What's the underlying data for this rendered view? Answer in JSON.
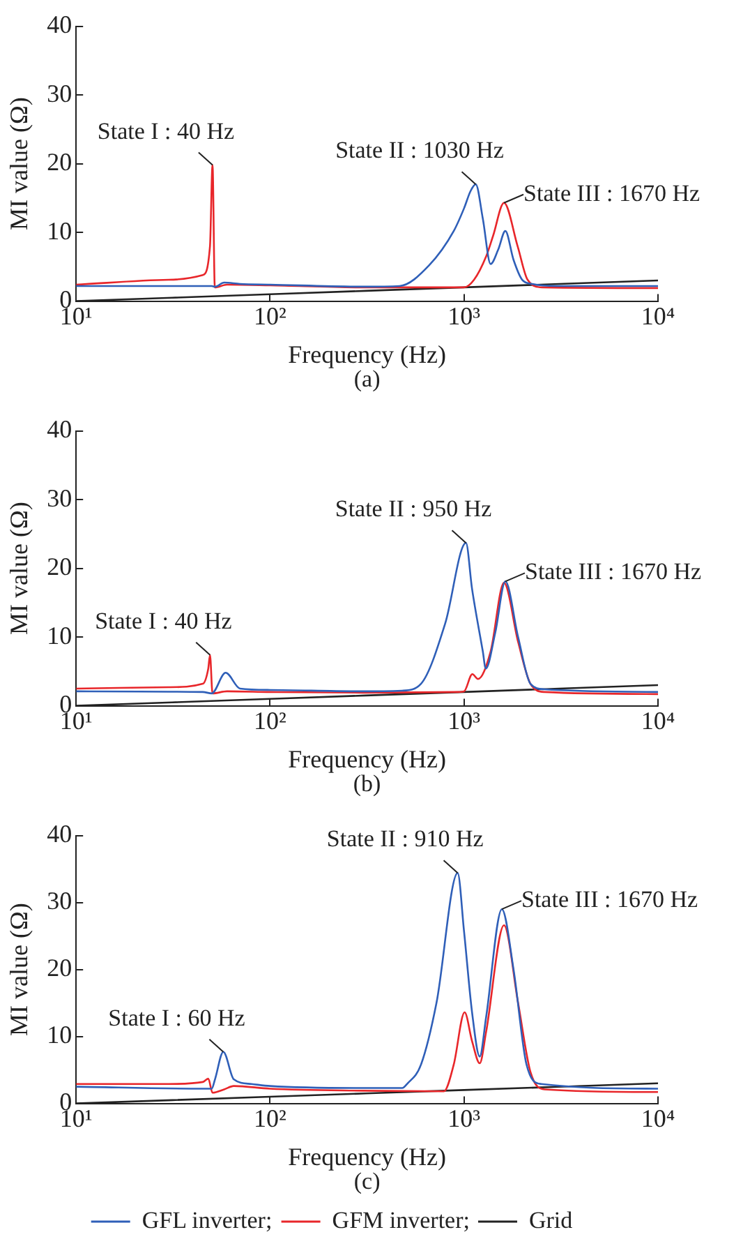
{
  "chart_data": [
    {
      "type": "line",
      "xlabel": "Frequency (Hz)",
      "ylabel": "MI value (Ω)",
      "log": "x",
      "xlim": [
        10,
        10000
      ],
      "xticks": [
        {
          "value": 10,
          "label": "10¹"
        },
        {
          "value": 100,
          "label": "10²"
        },
        {
          "value": 1000,
          "label": "10³"
        },
        {
          "value": 10000,
          "label": "10⁴"
        }
      ],
      "ylim": [
        0,
        40
      ],
      "yticks": [
        0,
        10,
        20,
        30,
        40
      ],
      "grid": false,
      "legend": false,
      "marker": "none",
      "line_style": "solid",
      "series": [
        {
          "color": "#2f5fb8",
          "x": [
            10,
            45,
            50,
            52,
            58,
            70,
            100,
            300,
            465,
            660,
            885,
            1000,
            1080,
            1149,
            1250,
            1371,
            1500,
            1633,
            1800,
            1995,
            2247,
            3000,
            10000
          ],
          "values": [
            2.2,
            2.2,
            2.2,
            2.1,
            2.7,
            2.5,
            2.4,
            2.1,
            2.2,
            5.2,
            10.2,
            13.5,
            16,
            17,
            12,
            5.4,
            7.5,
            10.2,
            6,
            3.1,
            2.5,
            2.2,
            2.2
          ]
        },
        {
          "color": "#e8262a",
          "x": [
            10,
            30,
            45,
            49,
            50.5,
            51.9,
            60,
            100,
            300,
            1000,
            1126,
            1300,
            1412,
            1607,
            1889,
            2127,
            2539,
            10000
          ],
          "values": [
            2.4,
            3.1,
            3.8,
            8,
            19.8,
            2.0,
            2.4,
            2.3,
            2.0,
            2.0,
            3.1,
            6.5,
            9.5,
            14.3,
            8,
            3.1,
            2.0,
            1.9
          ]
        },
        {
          "color": "#222222",
          "x": [
            10,
            100,
            1000,
            10000
          ],
          "values": [
            0,
            1,
            2,
            3
          ]
        }
      ],
      "annotations": [
        {
          "text": "State I : 40 Hz",
          "x": 50.5,
          "y": 19.8
        },
        {
          "text": "State II : 1030 Hz",
          "x": 1149,
          "y": 17
        },
        {
          "text": "State III : 1670 Hz",
          "x": 1607,
          "y": 14.3
        },
        "(a)"
      ]
    },
    {
      "type": "line",
      "xlabel": "Frequency (Hz)",
      "ylabel": "MI value (Ω)",
      "log": "x",
      "xlim": [
        10,
        10000
      ],
      "xticks": [
        {
          "value": 10,
          "label": "10¹"
        },
        {
          "value": 100,
          "label": "10²"
        },
        {
          "value": 1000,
          "label": "10³"
        },
        {
          "value": 10000,
          "label": "10⁴"
        }
      ],
      "ylim": [
        0,
        40
      ],
      "yticks": [
        0,
        10,
        20,
        30,
        40
      ],
      "grid": false,
      "legend": false,
      "marker": "none",
      "line_style": "solid",
      "series": [
        {
          "color": "#2f5fb8",
          "x": [
            10,
            45,
            50,
            59,
            70,
            100,
            300,
            480,
            600,
            800,
            1023,
            1100,
            1250,
            1294,
            1450,
            1633,
            1900,
            2200,
            2600,
            10000
          ],
          "values": [
            2.1,
            2.0,
            1.8,
            4.8,
            2.5,
            2.3,
            2.1,
            2.2,
            3.2,
            12,
            23.7,
            17,
            7.9,
            5.4,
            10.7,
            18.1,
            10,
            3.2,
            2.4,
            2.0
          ]
        },
        {
          "color": "#e8262a",
          "x": [
            10,
            30,
            45,
            48,
            49,
            50.5,
            60,
            100,
            300,
            900,
            1000,
            1104,
            1180,
            1371,
            1607,
            1900,
            2200,
            2600,
            10000
          ],
          "values": [
            2.5,
            2.7,
            3.2,
            5.4,
            7.4,
            1.8,
            2.1,
            2.0,
            1.9,
            2.0,
            2.1,
            4.6,
            3.9,
            7.9,
            17.9,
            9.3,
            3.2,
            2.0,
            1.7
          ]
        },
        {
          "color": "#222222",
          "x": [
            10,
            100,
            1000,
            10000
          ],
          "values": [
            0,
            1,
            2,
            3
          ]
        }
      ],
      "annotations": [
        {
          "text": "State I : 40 Hz",
          "x": 49,
          "y": 7.4
        },
        {
          "text": "State II : 950 Hz",
          "x": 1023,
          "y": 23.7
        },
        {
          "text": "State III : 1670 Hz",
          "x": 1633,
          "y": 18.1
        },
        "(b)"
      ]
    },
    {
      "type": "line",
      "xlabel": "Frequency (Hz)",
      "ylabel": "MI value (Ω)",
      "log": "x",
      "xlim": [
        10,
        10000
      ],
      "xticks": [
        {
          "value": 10,
          "label": "10¹"
        },
        {
          "value": 100,
          "label": "10²"
        },
        {
          "value": 1000,
          "label": "10³"
        },
        {
          "value": 10000,
          "label": "10⁴"
        }
      ],
      "ylim": [
        0,
        40
      ],
      "yticks": [
        0,
        10,
        20,
        30,
        40
      ],
      "grid": false,
      "legend": "bottom",
      "marker": "none",
      "line_style": "solid",
      "series": [
        {
          "name": "GFL inverter;",
          "color": "#2f5fb8",
          "x": [
            10,
            45,
            50,
            52,
            57.4,
            65,
            80,
            100,
            300,
            480,
            508,
            600,
            721,
            927,
            1000,
            1100,
            1205,
            1300,
            1567,
            1800,
            2100,
            2500,
            10000
          ],
          "values": [
            2.5,
            2.2,
            2.2,
            3.6,
            7.7,
            3.6,
            2.9,
            2.6,
            2.3,
            2.3,
            2.9,
            5.8,
            15,
            34.4,
            25.7,
            13.6,
            7.0,
            12.9,
            29.0,
            20,
            5.8,
            2.9,
            2.2
          ]
        },
        {
          "name": "GFM inverter;",
          "color": "#e8262a",
          "x": [
            10,
            30,
            45,
            48,
            50.5,
            58,
            65,
            100,
            300,
            787,
            885,
            1007,
            1100,
            1205,
            1300,
            1607,
            1900,
            2200,
            2600,
            10000
          ],
          "values": [
            2.9,
            2.9,
            3.2,
            3.7,
            1.6,
            2.1,
            2.6,
            2.2,
            1.9,
            1.8,
            5.8,
            13.6,
            9.3,
            6.0,
            10.7,
            26.6,
            15,
            4.7,
            2.1,
            1.7
          ]
        },
        {
          "name": "Grid",
          "color": "#222222",
          "x": [
            10,
            100,
            1000,
            10000
          ],
          "values": [
            0,
            1,
            2,
            3
          ]
        }
      ],
      "annotations": [
        {
          "text": "State I : 60 Hz",
          "x": 57.4,
          "y": 7.7
        },
        {
          "text": "State II : 910 Hz",
          "x": 927,
          "y": 34.4
        },
        {
          "text": "State III : 1670 Hz",
          "x": 1567,
          "y": 29.0
        },
        "(c)"
      ]
    }
  ]
}
